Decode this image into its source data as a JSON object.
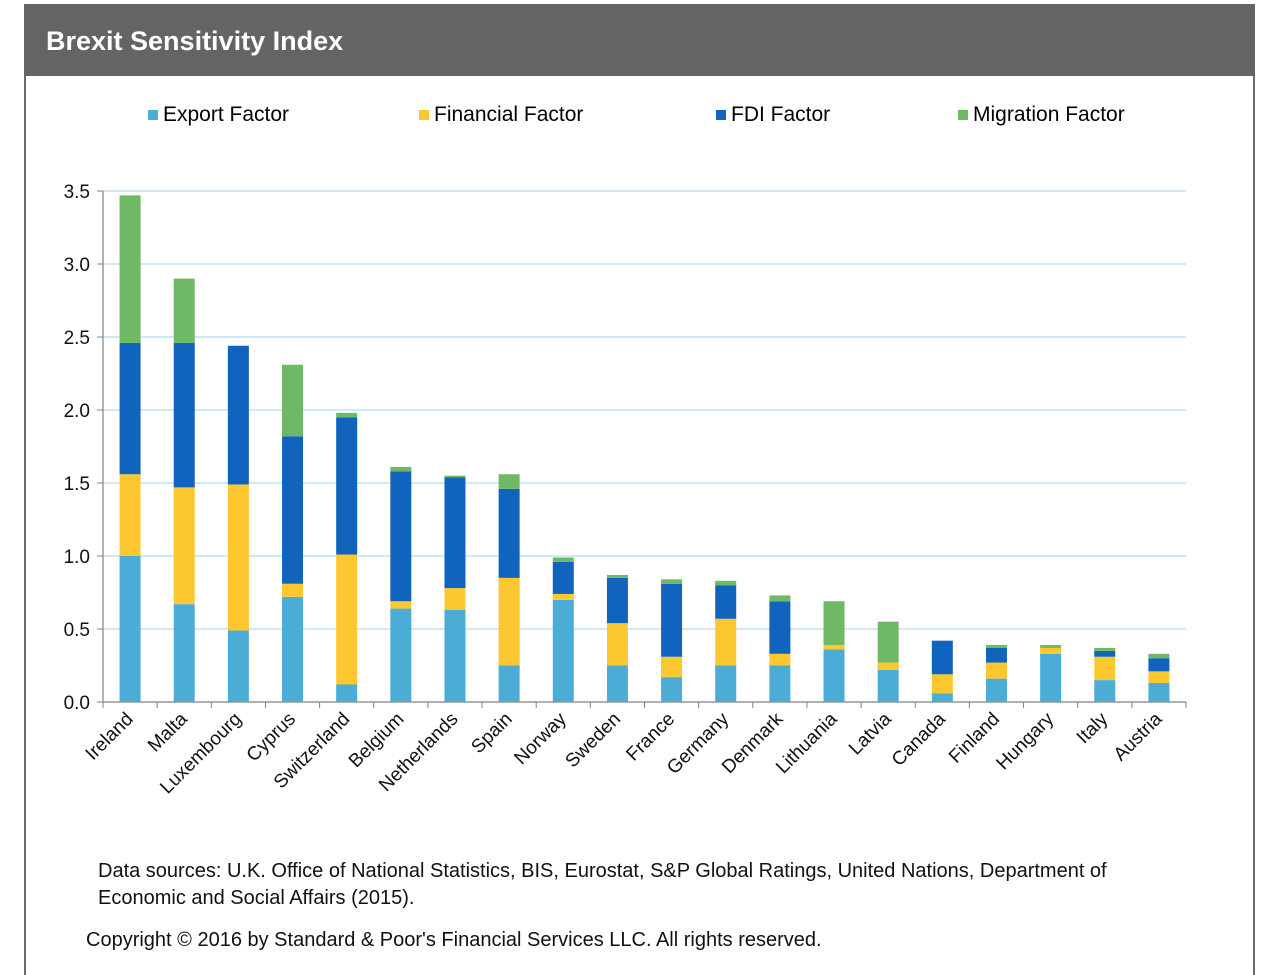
{
  "header": {
    "title": "Brexit Sensitivity  Index"
  },
  "colors": {
    "header_bg": "#646464",
    "export": "#4bacd6",
    "financial": "#fdc82f",
    "fdi": "#1164bd",
    "migration": "#6fb865",
    "grid": "#bfe3f3"
  },
  "chart_data": {
    "type": "bar",
    "stacked": true,
    "title": "Brexit Sensitivity  Index",
    "categories": [
      "Ireland",
      "Malta",
      "Luxembourg",
      "Cyprus",
      "Switzerland",
      "Belgium",
      "Netherlands",
      "Spain",
      "Norway",
      "Sweden",
      "France",
      "Germany",
      "Denmark",
      "Lithuania",
      "Latvia",
      "Canada",
      "Finland",
      "Hungary",
      "Italy",
      "Austria"
    ],
    "series": [
      {
        "name": "Export Factor",
        "color": "#4bacd6",
        "values": [
          1.0,
          0.67,
          0.49,
          0.72,
          0.12,
          0.64,
          0.63,
          0.25,
          0.7,
          0.25,
          0.17,
          0.25,
          0.25,
          0.36,
          0.22,
          0.06,
          0.16,
          0.33,
          0.15,
          0.13
        ]
      },
      {
        "name": "Financial Factor",
        "color": "#fdc82f",
        "values": [
          0.56,
          0.8,
          1.0,
          0.09,
          0.89,
          0.05,
          0.15,
          0.6,
          0.04,
          0.29,
          0.14,
          0.32,
          0.08,
          0.03,
          0.05,
          0.13,
          0.11,
          0.04,
          0.16,
          0.08
        ]
      },
      {
        "name": "FDI Factor",
        "color": "#1164bd",
        "values": [
          0.9,
          0.99,
          0.95,
          1.01,
          0.94,
          0.89,
          0.76,
          0.61,
          0.22,
          0.31,
          0.5,
          0.23,
          0.36,
          0.0,
          0.0,
          0.23,
          0.1,
          0.0,
          0.04,
          0.09
        ]
      },
      {
        "name": "Migration Factor",
        "color": "#6fb865",
        "values": [
          1.01,
          0.44,
          0.0,
          0.49,
          0.03,
          0.03,
          0.01,
          0.1,
          0.03,
          0.02,
          0.03,
          0.03,
          0.04,
          0.3,
          0.28,
          0.0,
          0.02,
          0.02,
          0.02,
          0.03
        ]
      }
    ],
    "ylim": [
      0,
      3.5
    ],
    "yticks": [
      "0.0",
      "0.5",
      "1.0",
      "1.5",
      "2.0",
      "2.5",
      "3.0",
      "3.5"
    ],
    "grid": true,
    "legend_position": "top"
  },
  "notes": {
    "sources": "Data sources: U.K. Office of National Statistics, BIS,  Eurostat, S&P Global Ratings, United  Nations, Department  of Economic and Social Affairs (2015).",
    "copyright": "Copyright © 2016 by Standard & Poor's Financial Services LLC. All rights reserved."
  }
}
